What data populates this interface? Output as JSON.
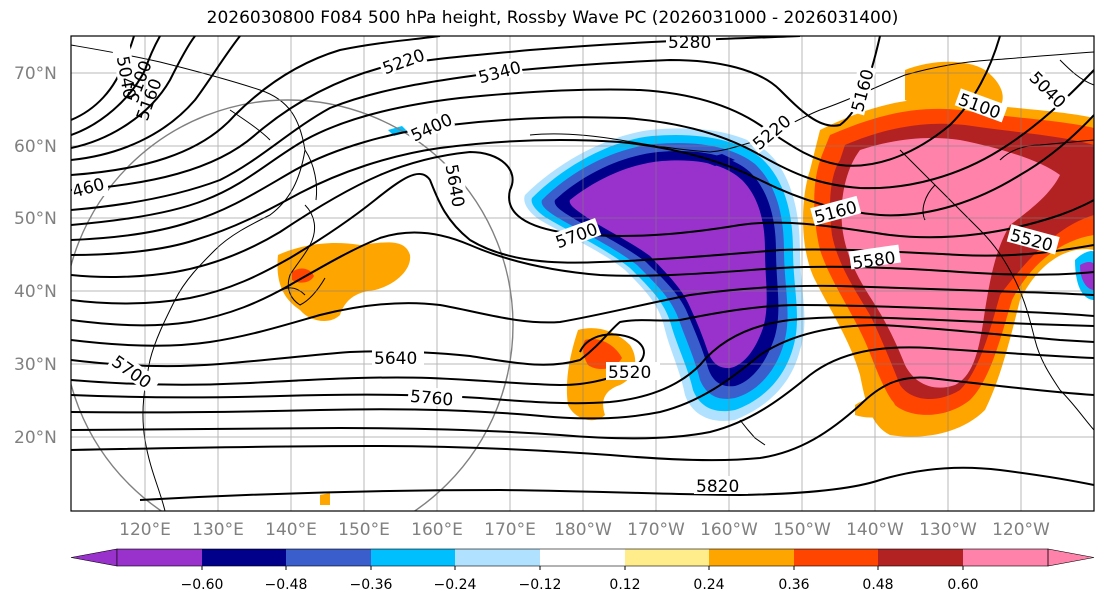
{
  "title": "2026030800 F084 500 hPa height, Rossby Wave PC (2026031000 - 2026031400)",
  "lat_labels": [
    "70°N",
    "60°N",
    "50°N",
    "40°N",
    "30°N",
    "20°N"
  ],
  "lon_labels": [
    "120°E",
    "130°E",
    "140°E",
    "150°E",
    "160°E",
    "170°E",
    "180°W",
    "170°W",
    "160°W",
    "150°W",
    "140°W",
    "130°W",
    "120°W"
  ],
  "contour_labels": [
    "5040",
    "5100",
    "5160",
    "460",
    "5220",
    "5280",
    "5340",
    "5400",
    "5640",
    "5700",
    "5220",
    "5160",
    "5160",
    "5100",
    "5040",
    "5580",
    "5520",
    "5640",
    "5700",
    "5760",
    "5520",
    "5820"
  ],
  "colorbar": {
    "ticks": [
      "−0.60",
      "−0.48",
      "−0.36",
      "−0.24",
      "−0.12",
      "0.12",
      "0.24",
      "0.36",
      "0.48",
      "0.60"
    ],
    "colors": [
      "#9932CC",
      "#00008B",
      "#3A5FCD",
      "#00BFFF",
      "#B0E2FF",
      "#FFFFFF",
      "#FFEC8B",
      "#FFA500",
      "#FF4500",
      "#B22222",
      "#FF82AB"
    ]
  }
}
